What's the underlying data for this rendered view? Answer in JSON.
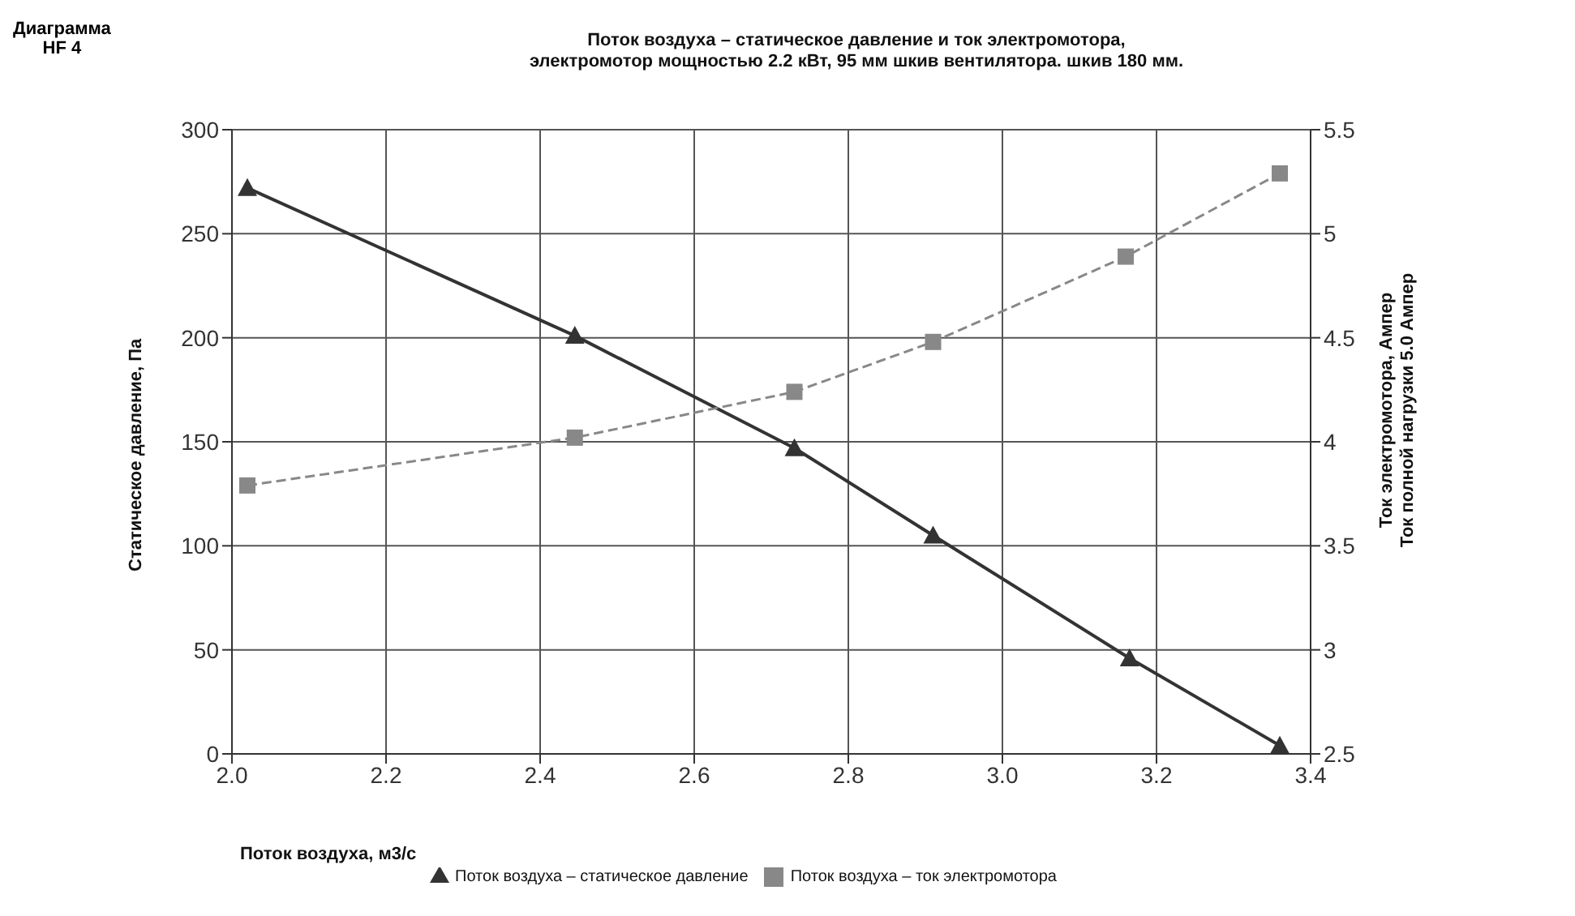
{
  "chart_data": {
    "type": "line",
    "title": "Поток воздуха – статическое давление и ток электромотора,\nэлектромотор мощностью 2.2 кВт, 95 мм шкив вентилятора. шкив 180 мм.",
    "annotations": [
      "Диаграмма\nHF 4"
    ],
    "xlabel": "Поток воздуха, м3/с",
    "ylabel": "Статическое давление, Па",
    "y2label": "Ток электромотора, Ампер\nТок полной нагрузки 5.0 Ампер",
    "xlim": [
      2.0,
      3.4
    ],
    "xticks": [
      {
        "value": 2,
        "label": "2.0"
      },
      2.2,
      2.4,
      2.6,
      2.8,
      {
        "value": 3,
        "label": "3.0"
      },
      3.2,
      3.4
    ],
    "ylim": [
      0,
      300
    ],
    "yticks": [
      0,
      50,
      100,
      150,
      200,
      250,
      300
    ],
    "y2lim": [
      2.5,
      5.5
    ],
    "y2ticks": [
      2.5,
      3,
      3.5,
      4,
      4.5,
      5,
      5.5
    ],
    "grid": true,
    "legend": "bottom",
    "series": [
      {
        "name": "Поток воздуха – статическое давление",
        "color": "#333333",
        "marker": "triangle",
        "line_style": "solid",
        "x": [
          2.02,
          2.445,
          2.73,
          2.91,
          3.165,
          3.36
        ],
        "values": [
          272,
          201,
          147,
          105,
          46,
          4
        ]
      },
      {
        "name": "Поток воздуха – ток электромотора",
        "color": "#888888",
        "marker": "square",
        "line_style": "dashed",
        "axis": "y2",
        "x": [
          2.02,
          2.445,
          2.73,
          2.91,
          3.16,
          3.36
        ],
        "values": [
          3.79,
          4.02,
          4.24,
          4.48,
          4.89,
          5.29
        ]
      }
    ]
  }
}
